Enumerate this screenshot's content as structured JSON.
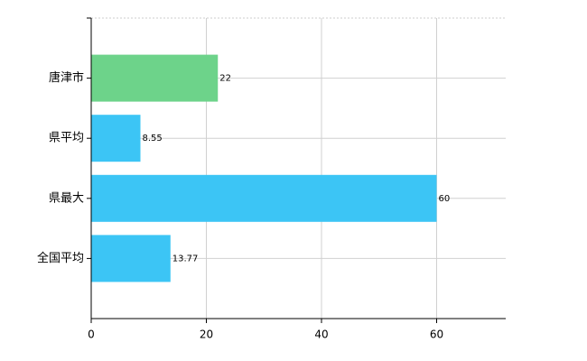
{
  "chart_data": {
    "type": "hbar",
    "categories": [
      "唐津市",
      "県平均",
      "県最大",
      "全国平均"
    ],
    "values": [
      22,
      8.55,
      60,
      13.77
    ],
    "colors": [
      "#6dd38a",
      "#3cc5f5",
      "#3cc5f5",
      "#3cc5f5"
    ],
    "xlim": [
      0,
      72
    ],
    "xticks": [
      0,
      20,
      40,
      60
    ],
    "grid": true
  }
}
